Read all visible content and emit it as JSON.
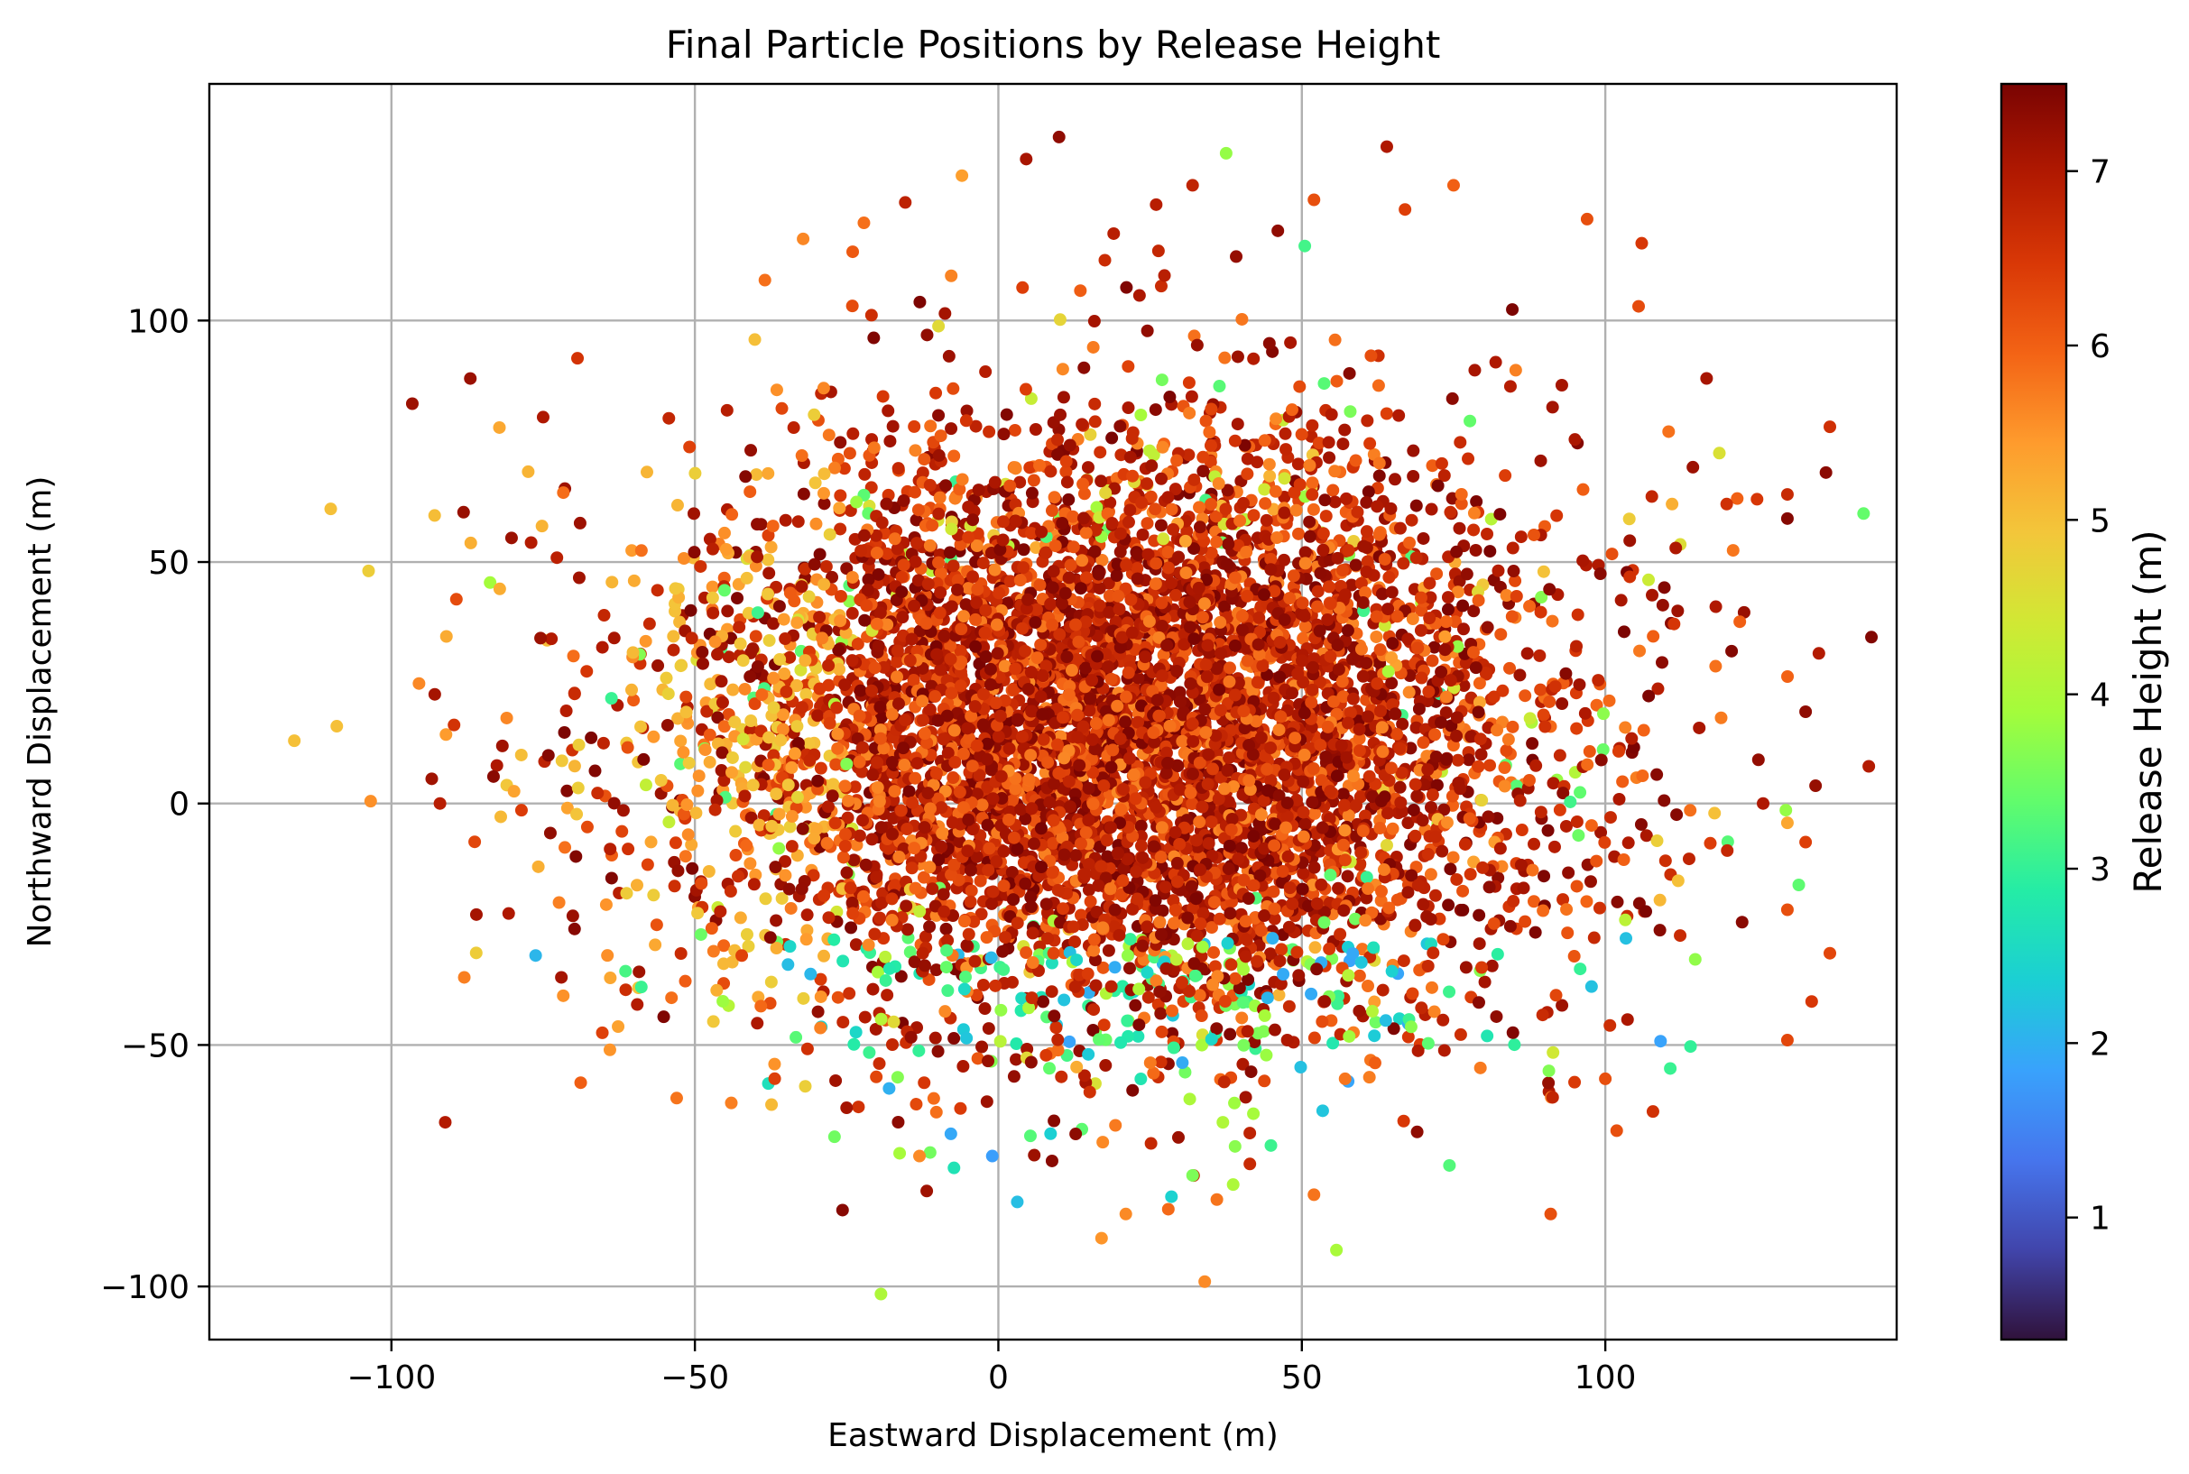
{
  "chart_data": {
    "type": "scatter",
    "title": "Final Particle Positions by Release Height",
    "xlabel": "Eastward Displacement (m)",
    "ylabel": "Northward Displacement (m)",
    "xlim": [
      -130,
      148
    ],
    "ylim": [
      -111,
      149
    ],
    "xticks": [
      -100,
      -50,
      0,
      50,
      100
    ],
    "xtick_labels": [
      "−100",
      "−50",
      "0",
      "50",
      "100"
    ],
    "yticks": [
      -100,
      -50,
      0,
      50,
      100
    ],
    "ytick_labels": [
      "−100",
      "−50",
      "0",
      "50",
      "100"
    ],
    "grid": true,
    "colorbar": {
      "label": "Release Height (m)",
      "range": [
        0.3,
        7.5
      ],
      "ticks": [
        1,
        2,
        3,
        4,
        5,
        6,
        7
      ],
      "tick_labels": [
        "1",
        "2",
        "3",
        "4",
        "5",
        "6",
        "7"
      ],
      "colormap": "turbo",
      "colors": [
        "#30123b",
        "#4145ab",
        "#4675ed",
        "#39a2fc",
        "#1bcfd4",
        "#24eca6",
        "#61fc6c",
        "#a4fc3b",
        "#d1e834",
        "#f3c63a",
        "#fe9b2d",
        "#f36315",
        "#d93806",
        "#b11901",
        "#7a0402"
      ]
    },
    "cloud_summary": {
      "n_points_approx": 9000,
      "center": [
        20,
        15
      ],
      "spread_x_sd": 38,
      "spread_y_sd": 33,
      "note_ranges": "points extend from about x=-116 to x=137 and y=-100 to y=138"
    },
    "points": [
      {
        "x": 10,
        "y": 138,
        "h": 7.3
      },
      {
        "x": 64,
        "y": 136,
        "h": 7.0
      },
      {
        "x": -6,
        "y": 130,
        "h": 5.4
      },
      {
        "x": 32,
        "y": 128,
        "h": 6.8
      },
      {
        "x": 75,
        "y": 128,
        "h": 6.0
      },
      {
        "x": 52,
        "y": 125,
        "h": 6.2
      },
      {
        "x": 26,
        "y": 124,
        "h": 6.9
      },
      {
        "x": 67,
        "y": 123,
        "h": 6.4
      },
      {
        "x": 97,
        "y": 121,
        "h": 6.2
      },
      {
        "x": 19,
        "y": 118,
        "h": 6.9
      },
      {
        "x": 106,
        "y": 116,
        "h": 6.5
      },
      {
        "x": -110,
        "y": 61,
        "h": 5.0
      },
      {
        "x": -109,
        "y": 16,
        "h": 5.0
      },
      {
        "x": -116,
        "y": 13,
        "h": 5.0
      },
      {
        "x": -87,
        "y": 88,
        "h": 7.2
      },
      {
        "x": -75,
        "y": 80,
        "h": 7.0
      },
      {
        "x": -92,
        "y": 0,
        "h": 6.9
      },
      {
        "x": -86,
        "y": -23,
        "h": 7.1
      },
      {
        "x": -88,
        "y": -36,
        "h": 5.7
      },
      {
        "x": -72,
        "y": -36,
        "h": 7.1
      },
      {
        "x": -64,
        "y": -51,
        "h": 5.5
      },
      {
        "x": -44,
        "y": -62,
        "h": 5.7
      },
      {
        "x": -53,
        "y": -61,
        "h": 5.8
      },
      {
        "x": -25,
        "y": -63,
        "h": 7.1
      },
      {
        "x": -18,
        "y": -59,
        "h": 2.0
      },
      {
        "x": -27,
        "y": -69,
        "h": 3.5
      },
      {
        "x": -13,
        "y": -73,
        "h": 5.6
      },
      {
        "x": -1,
        "y": -73,
        "h": 1.8
      },
      {
        "x": 17,
        "y": -90,
        "h": 5.5
      },
      {
        "x": 21,
        "y": -85,
        "h": 5.6
      },
      {
        "x": 34,
        "y": -99,
        "h": 5.6
      },
      {
        "x": 28,
        "y": -84,
        "h": 5.9
      },
      {
        "x": 36,
        "y": -82,
        "h": 5.8
      },
      {
        "x": 52,
        "y": -81,
        "h": 5.8
      },
      {
        "x": 32,
        "y": -77,
        "h": 3.6
      },
      {
        "x": 39,
        "y": -71,
        "h": 3.7
      },
      {
        "x": 69,
        "y": -68,
        "h": 7.3
      },
      {
        "x": 91,
        "y": -85,
        "h": 6.2
      },
      {
        "x": 100,
        "y": -57,
        "h": 6.2
      },
      {
        "x": 130,
        "y": -49,
        "h": 6.3
      },
      {
        "x": 134,
        "y": -41,
        "h": 6.5
      },
      {
        "x": 137,
        "y": -31,
        "h": 6.3
      },
      {
        "x": 130,
        "y": -22,
        "h": 6.2
      },
      {
        "x": 133,
        "y": -8,
        "h": 6.4
      },
      {
        "x": 130,
        "y": -4,
        "h": 5.3
      },
      {
        "x": 133,
        "y": 19,
        "h": 7.3
      },
      {
        "x": 130,
        "y": 59,
        "h": 7.4
      },
      {
        "x": 130,
        "y": 64,
        "h": 6.7
      },
      {
        "x": 137,
        "y": 78,
        "h": 6.6
      },
      {
        "x": 125,
        "y": 63,
        "h": 6.5
      },
      {
        "x": 120,
        "y": 62,
        "h": 6.6
      },
      {
        "x": 111,
        "y": 62,
        "h": 5.2
      },
      {
        "x": 112,
        "y": -16,
        "h": 5.0
      },
      {
        "x": 109,
        "y": -20,
        "h": 5.1
      },
      {
        "x": 118,
        "y": -2,
        "h": 5.0
      },
      {
        "x": 126,
        "y": 0,
        "h": 7.0
      }
    ]
  }
}
